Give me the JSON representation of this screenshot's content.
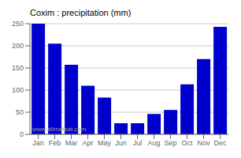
{
  "chart_data": {
    "type": "bar",
    "title": "Coxim : precipitation (mm)",
    "categories": [
      "Jan",
      "Feb",
      "Mar",
      "Apr",
      "May",
      "Jun",
      "Jul",
      "Aug",
      "Sep",
      "Oct",
      "Nov",
      "Dec"
    ],
    "values": [
      250,
      205,
      157,
      110,
      83,
      25,
      25,
      46,
      55,
      113,
      170,
      243
    ],
    "color": "#0000CC",
    "ylim": [
      0,
      250
    ],
    "yticks": [
      0,
      50,
      100,
      150,
      200,
      250
    ],
    "grid": true,
    "annotations": [
      "www.allmetsat.com"
    ]
  }
}
